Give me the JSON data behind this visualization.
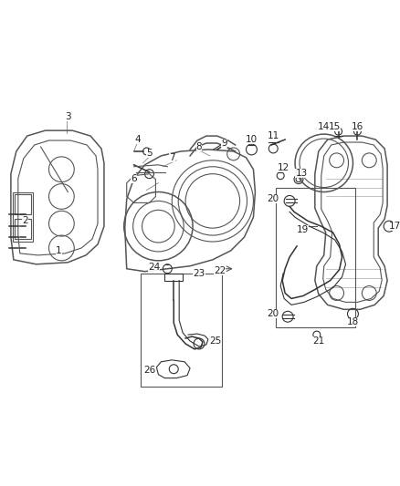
{
  "bg_color": "#ffffff",
  "line_color": "#555555",
  "dark_color": "#333333",
  "figsize": [
    4.38,
    5.33
  ],
  "dpi": 100,
  "label_fontsize": 7.5
}
